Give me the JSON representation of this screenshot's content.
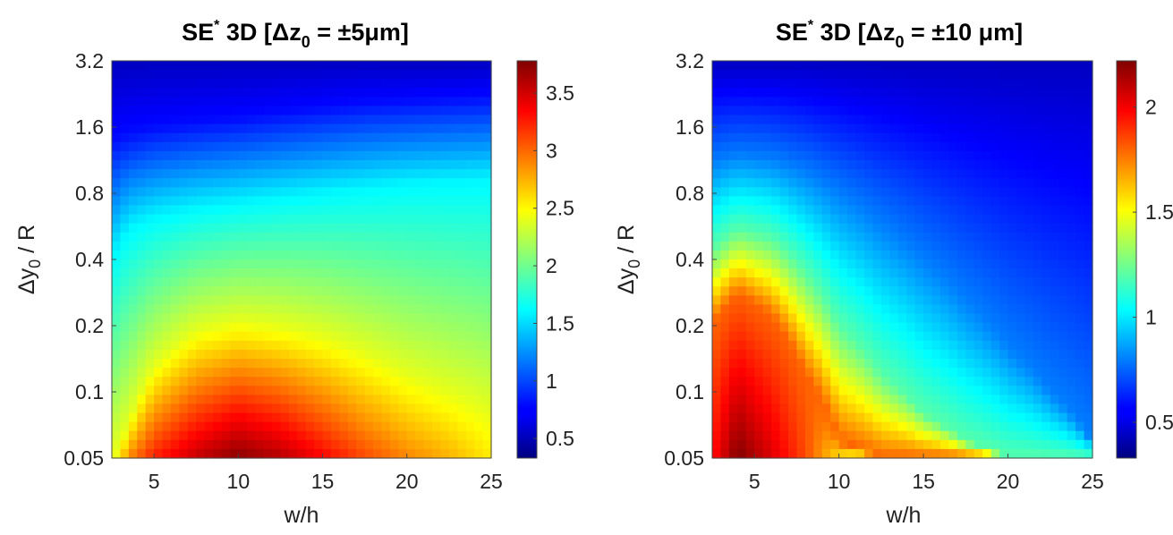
{
  "chart_data": [
    {
      "type": "heatmap",
      "title": "SE* 3D [Δz0 = ±5μm]",
      "title_parts": {
        "pre": "SE",
        "sup": "*",
        "mid": " 3D [Δz",
        "sub": "0",
        "post": " = ±5μm]"
      },
      "xlabel": "w/h",
      "ylabel": "Δy0 / R",
      "ylabel_parts": {
        "pre": "Δy",
        "sub": "0",
        "post": " / R"
      },
      "xlim": [
        2.5,
        25
      ],
      "xticks": [
        5,
        10,
        15,
        20,
        25
      ],
      "yscale": "log",
      "ylim": [
        0.05,
        3.2
      ],
      "yticks": [
        "0.05",
        "0.1",
        "0.2",
        "0.4",
        "0.8",
        "1.6",
        "3.2"
      ],
      "colormap": "jet",
      "clim": [
        0.33,
        3.78
      ],
      "colorbar_ticks": [
        "0.5",
        "1",
        "1.5",
        "2",
        "2.5",
        "3",
        "3.5"
      ],
      "peak": {
        "x": 9.5,
        "y": 0.05,
        "value": 3.78
      },
      "profile": {
        "x": [
          2.5,
          3.5,
          5,
          7.5,
          10,
          12.5,
          15,
          17.5,
          20,
          22.5,
          25
        ],
        "value_at_0.05": [
          2.3,
          2.9,
          3.25,
          3.55,
          3.75,
          3.6,
          3.35,
          3.1,
          2.9,
          2.75,
          2.55
        ],
        "level_2.4_y": [
          0.05,
          0.07,
          0.13,
          0.19,
          0.21,
          0.2,
          0.18,
          0.15,
          0.12,
          0.1,
          0.08
        ],
        "level_1.6_y": [
          0.4,
          0.55,
          0.62,
          0.68,
          0.72,
          0.76,
          0.8,
          0.84,
          0.88,
          0.9,
          0.92
        ],
        "level_0.8_y": [
          1.4,
          1.5,
          1.6,
          1.68,
          1.75,
          1.85,
          1.95,
          2.05,
          2.1,
          2.15,
          2.2
        ],
        "value_at_3.2": 0.55
      }
    },
    {
      "type": "heatmap",
      "title": "SE* 3D [Δz0 = ±10 μm]",
      "title_parts": {
        "pre": "SE",
        "sup": "*",
        "mid": " 3D [Δz",
        "sub": "0",
        "post": " = ±10 μm]"
      },
      "xlabel": "w/h",
      "ylabel": "Δy0 / R",
      "ylabel_parts": {
        "pre": "Δy",
        "sub": "0",
        "post": " / R"
      },
      "xlim": [
        2.5,
        25
      ],
      "xticks": [
        5,
        10,
        15,
        20,
        25
      ],
      "yscale": "log",
      "ylim": [
        0.05,
        3.2
      ],
      "yticks": [
        "0.05",
        "0.1",
        "0.2",
        "0.4",
        "0.8",
        "1.6",
        "3.2"
      ],
      "colormap": "jet",
      "clim": [
        0.33,
        2.22
      ],
      "colorbar_ticks": [
        "0.5",
        "1",
        "1.5",
        "2"
      ],
      "peak": {
        "x": 4,
        "y": 0.05,
        "value": 2.22
      },
      "profile": {
        "x": [
          2.5,
          4,
          6,
          8,
          10,
          12.5,
          15,
          17.5,
          20,
          22.5,
          25
        ],
        "value_at_0.05": [
          1.95,
          2.22,
          2.05,
          1.85,
          1.55,
          1.3,
          1.1,
          0.95,
          0.8,
          0.68,
          0.6
        ],
        "level_1.8_y": [
          0.2,
          0.28,
          0.22,
          0.12,
          0.06,
          0.05,
          0.05,
          0.05,
          0.05,
          0.05,
          0.05
        ],
        "level_1.2_y": [
          0.45,
          0.55,
          0.5,
          0.35,
          0.2,
          0.12,
          0.08,
          0.06,
          0.05,
          0.05,
          0.05
        ],
        "level_0.8_y": [
          1.1,
          1.2,
          1.15,
          1.0,
          0.8,
          0.58,
          0.4,
          0.26,
          0.16,
          0.1,
          0.06
        ],
        "value_at_3.2": 0.45
      }
    }
  ]
}
